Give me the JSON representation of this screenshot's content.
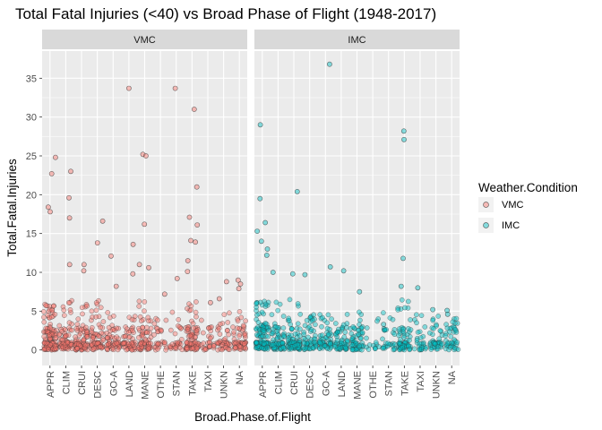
{
  "chart_data": {
    "type": "scatter",
    "title": "Total Fatal Injuries (<40) vs Broad Phase of Flight (1948-2017)",
    "xlabel": "Broad.Phase.of.Flight",
    "ylabel": "Total.Fatal.Injuries",
    "categories": [
      "APPR",
      "CLIM",
      "CRUI",
      "DESC",
      "GO-A",
      "LAND",
      "MANE",
      "OTHE",
      "STAN",
      "TAKE",
      "TAXI",
      "UNKN",
      "NA"
    ],
    "yticks": [
      0,
      5,
      10,
      15,
      20,
      25,
      30,
      35
    ],
    "ylim": [
      -2,
      38.5
    ],
    "grid": true,
    "legend": {
      "title": "Weather.Condition",
      "position": "right"
    },
    "panels": [
      {
        "name": "VMC",
        "color": "#F8766D",
        "density": [
          10,
          5,
          6,
          5,
          4,
          4,
          5,
          2,
          2,
          6,
          2,
          3,
          4
        ],
        "outliers": [
          {
            "x": "APPR",
            "y": 22.7
          },
          {
            "x": "APPR",
            "y": 17.8
          },
          {
            "x": "APPR",
            "y": 24.8
          },
          {
            "x": "APPR",
            "y": 18.4
          },
          {
            "x": "CLIM",
            "y": 19.6
          },
          {
            "x": "CLIM",
            "y": 17
          },
          {
            "x": "CLIM",
            "y": 23
          },
          {
            "x": "CLIM",
            "y": 11
          },
          {
            "x": "CRUI",
            "y": 11
          },
          {
            "x": "CRUI",
            "y": 10.2
          },
          {
            "x": "DESC",
            "y": 16.6
          },
          {
            "x": "DESC",
            "y": 13.8
          },
          {
            "x": "GO-A",
            "y": 8.2
          },
          {
            "x": "GO-A",
            "y": 12.1
          },
          {
            "x": "LAND",
            "y": 33.7
          },
          {
            "x": "LAND",
            "y": 13.6
          },
          {
            "x": "LAND",
            "y": 9.8
          },
          {
            "x": "MANE",
            "y": 25.2
          },
          {
            "x": "MANE",
            "y": 25
          },
          {
            "x": "MANE",
            "y": 16.2
          },
          {
            "x": "MANE",
            "y": 11
          },
          {
            "x": "MANE",
            "y": 10.6
          },
          {
            "x": "OTHE",
            "y": 7.2
          },
          {
            "x": "STAN",
            "y": 33.7
          },
          {
            "x": "STAN",
            "y": 9.2
          },
          {
            "x": "TAKE",
            "y": 31
          },
          {
            "x": "TAKE",
            "y": 21
          },
          {
            "x": "TAKE",
            "y": 17.1
          },
          {
            "x": "TAKE",
            "y": 16.1
          },
          {
            "x": "TAKE",
            "y": 14.1
          },
          {
            "x": "TAKE",
            "y": 13.9
          },
          {
            "x": "TAKE",
            "y": 11.5
          },
          {
            "x": "TAKE",
            "y": 10.1
          },
          {
            "x": "TAXI",
            "y": 6.1
          },
          {
            "x": "UNKN",
            "y": 8.8
          },
          {
            "x": "UNKN",
            "y": 6.6
          },
          {
            "x": "NA",
            "y": 9
          },
          {
            "x": "NA",
            "y": 8.5
          },
          {
            "x": "NA",
            "y": 7.9
          }
        ]
      },
      {
        "name": "IMC",
        "color": "#00BFC4",
        "density": [
          9,
          5,
          6,
          4,
          4,
          4,
          4,
          1,
          2,
          5,
          2,
          3,
          3
        ],
        "outliers": [
          {
            "x": "APPR",
            "y": 29
          },
          {
            "x": "APPR",
            "y": 19.5
          },
          {
            "x": "APPR",
            "y": 16.4
          },
          {
            "x": "APPR",
            "y": 15.3
          },
          {
            "x": "APPR",
            "y": 14
          },
          {
            "x": "APPR",
            "y": 13
          },
          {
            "x": "APPR",
            "y": 12.2
          },
          {
            "x": "CLIM",
            "y": 10
          },
          {
            "x": "CRUI",
            "y": 20.4
          },
          {
            "x": "CRUI",
            "y": 9.8
          },
          {
            "x": "DESC",
            "y": 9.7
          },
          {
            "x": "GO-A",
            "y": 36.8
          },
          {
            "x": "GO-A",
            "y": 10.7
          },
          {
            "x": "LAND",
            "y": 10.2
          },
          {
            "x": "MANE",
            "y": 7.5
          },
          {
            "x": "STAN",
            "y": 3.3
          },
          {
            "x": "TAKE",
            "y": 28.2
          },
          {
            "x": "TAKE",
            "y": 27.1
          },
          {
            "x": "TAKE",
            "y": 11.8
          },
          {
            "x": "TAKE",
            "y": 8.2
          },
          {
            "x": "TAXI",
            "y": 8
          },
          {
            "x": "UNKN",
            "y": 5.2
          },
          {
            "x": "NA",
            "y": 5.1
          },
          {
            "x": "NA",
            "y": 4.6
          }
        ]
      }
    ]
  }
}
